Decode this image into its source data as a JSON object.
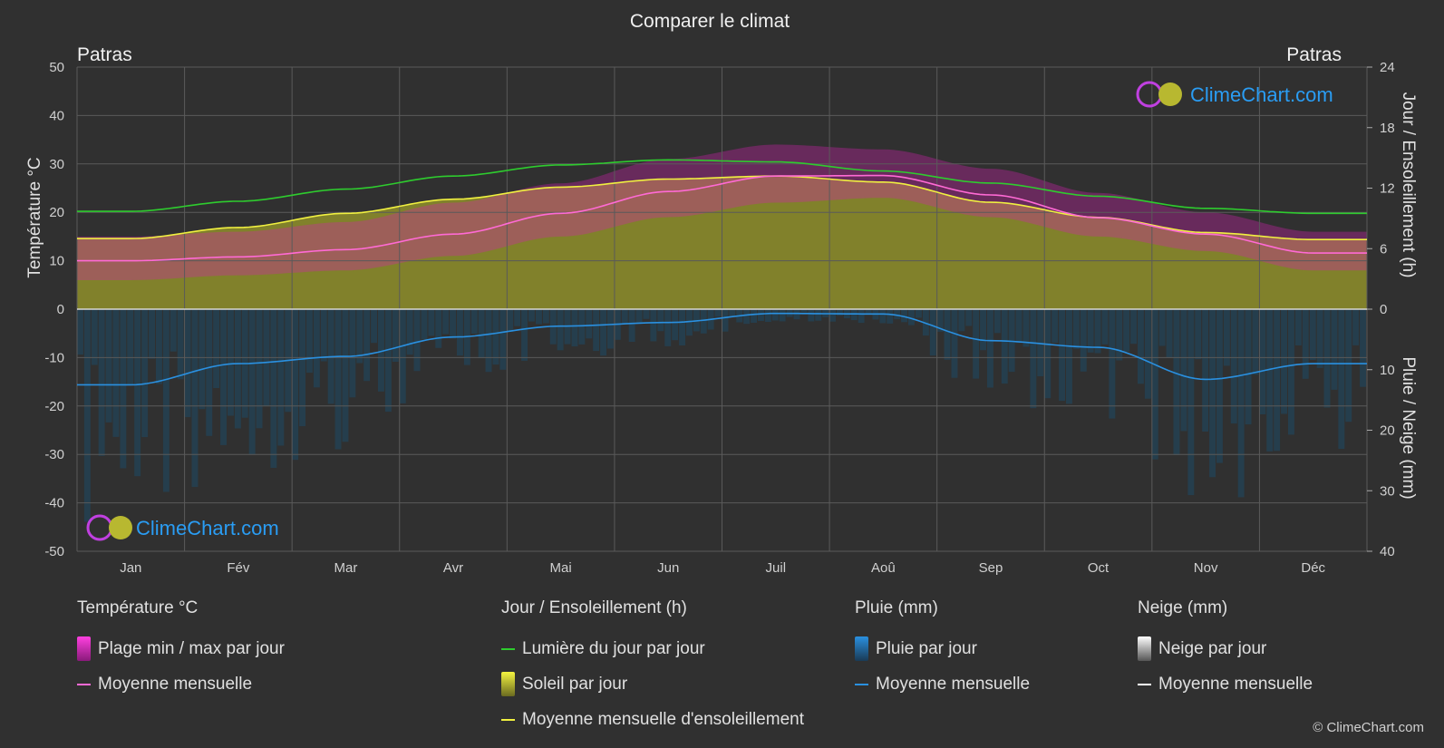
{
  "title": "Comparer le climat",
  "location_left": "Patras",
  "location_right": "Patras",
  "y_left_label": "Température °C",
  "y_right_top_label": "Jour / Ensoleillement (h)",
  "y_right_bottom_label": "Pluie / Neige (mm)",
  "watermark": "ClimeChart.com",
  "copyright": "© ClimeChart.com",
  "colors": {
    "background": "#303030",
    "daylight": "#2ecc2e",
    "sunshine_line": "#f0f040",
    "sunshine_fill": "#8f8f2a",
    "temp_line": "#ff6ad5",
    "temp_range": "#d020b0",
    "rain_line": "#2a90e0",
    "rain_fill": "#1e4a66",
    "snow_line": "#ffffff",
    "watermark": "#2a9df4"
  },
  "legend": {
    "temperature": {
      "title": "Température °C",
      "items": [
        {
          "label": "Plage min / max par jour",
          "icon": "magenta-bar"
        },
        {
          "label": "Moyenne mensuelle",
          "icon": "pink-line"
        }
      ]
    },
    "daylight": {
      "title": "Jour / Ensoleillement (h)",
      "items": [
        {
          "label": "Lumière du jour par jour",
          "icon": "green-line"
        },
        {
          "label": "Soleil par jour",
          "icon": "yellow-bar"
        },
        {
          "label": "Moyenne mensuelle d'ensoleillement",
          "icon": "yellow-line"
        }
      ]
    },
    "rain": {
      "title": "Pluie (mm)",
      "items": [
        {
          "label": "Pluie par jour",
          "icon": "blue-bar"
        },
        {
          "label": "Moyenne mensuelle",
          "icon": "blue-line"
        }
      ]
    },
    "snow": {
      "title": "Neige (mm)",
      "items": [
        {
          "label": "Neige par jour",
          "icon": "white-bar"
        },
        {
          "label": "Moyenne mensuelle",
          "icon": "white-line"
        }
      ]
    }
  },
  "chart_data": {
    "type": "line",
    "title": "Comparer le climat",
    "categories": [
      "Jan",
      "Fév",
      "Mar",
      "Avr",
      "Mai",
      "Jun",
      "Juil",
      "Aoû",
      "Sep",
      "Oct",
      "Nov",
      "Déc"
    ],
    "y_left": {
      "label": "Température °C",
      "range": [
        -50,
        50
      ],
      "ticks": [
        50,
        40,
        30,
        20,
        10,
        0,
        -10,
        -20,
        -30,
        -40,
        -50
      ]
    },
    "y_right_top": {
      "label": "Jour / Ensoleillement (h)",
      "range": [
        0,
        24
      ],
      "ticks": [
        24,
        18,
        12,
        6,
        0
      ]
    },
    "y_right_bottom": {
      "label": "Pluie / Neige (mm)",
      "range": [
        0,
        40
      ],
      "ticks": [
        0,
        10,
        20,
        30,
        40
      ]
    },
    "grid": true,
    "series": [
      {
        "name": "Lumière du jour par jour",
        "axis": "hours",
        "values": [
          9.7,
          10.7,
          11.9,
          13.2,
          14.3,
          14.8,
          14.6,
          13.7,
          12.5,
          11.2,
          10.0,
          9.5
        ]
      },
      {
        "name": "Moyenne mensuelle d'ensoleillement",
        "axis": "hours",
        "values": [
          7.0,
          8.1,
          9.5,
          10.9,
          12.1,
          12.9,
          13.2,
          12.6,
          10.6,
          9.1,
          7.6,
          6.9
        ]
      },
      {
        "name": "Moyenne mensuelle",
        "axis": "temperature",
        "values": [
          10.0,
          10.8,
          12.3,
          15.5,
          19.8,
          24.3,
          27.5,
          27.6,
          23.6,
          18.9,
          15.5,
          11.6
        ]
      },
      {
        "name": "Moyenne mensuelle",
        "axis": "rain_mm",
        "values": [
          12.5,
          9.0,
          7.8,
          4.6,
          2.8,
          2.2,
          0.7,
          0.8,
          5.2,
          6.3,
          11.6,
          9.0
        ]
      }
    ],
    "temperature_range_band": {
      "min": [
        6,
        7,
        8,
        11,
        15,
        19,
        22,
        23,
        19,
        15,
        12,
        8
      ],
      "max": [
        15,
        16,
        18,
        22,
        26,
        31,
        34,
        33,
        29,
        24,
        20,
        16
      ]
    }
  }
}
